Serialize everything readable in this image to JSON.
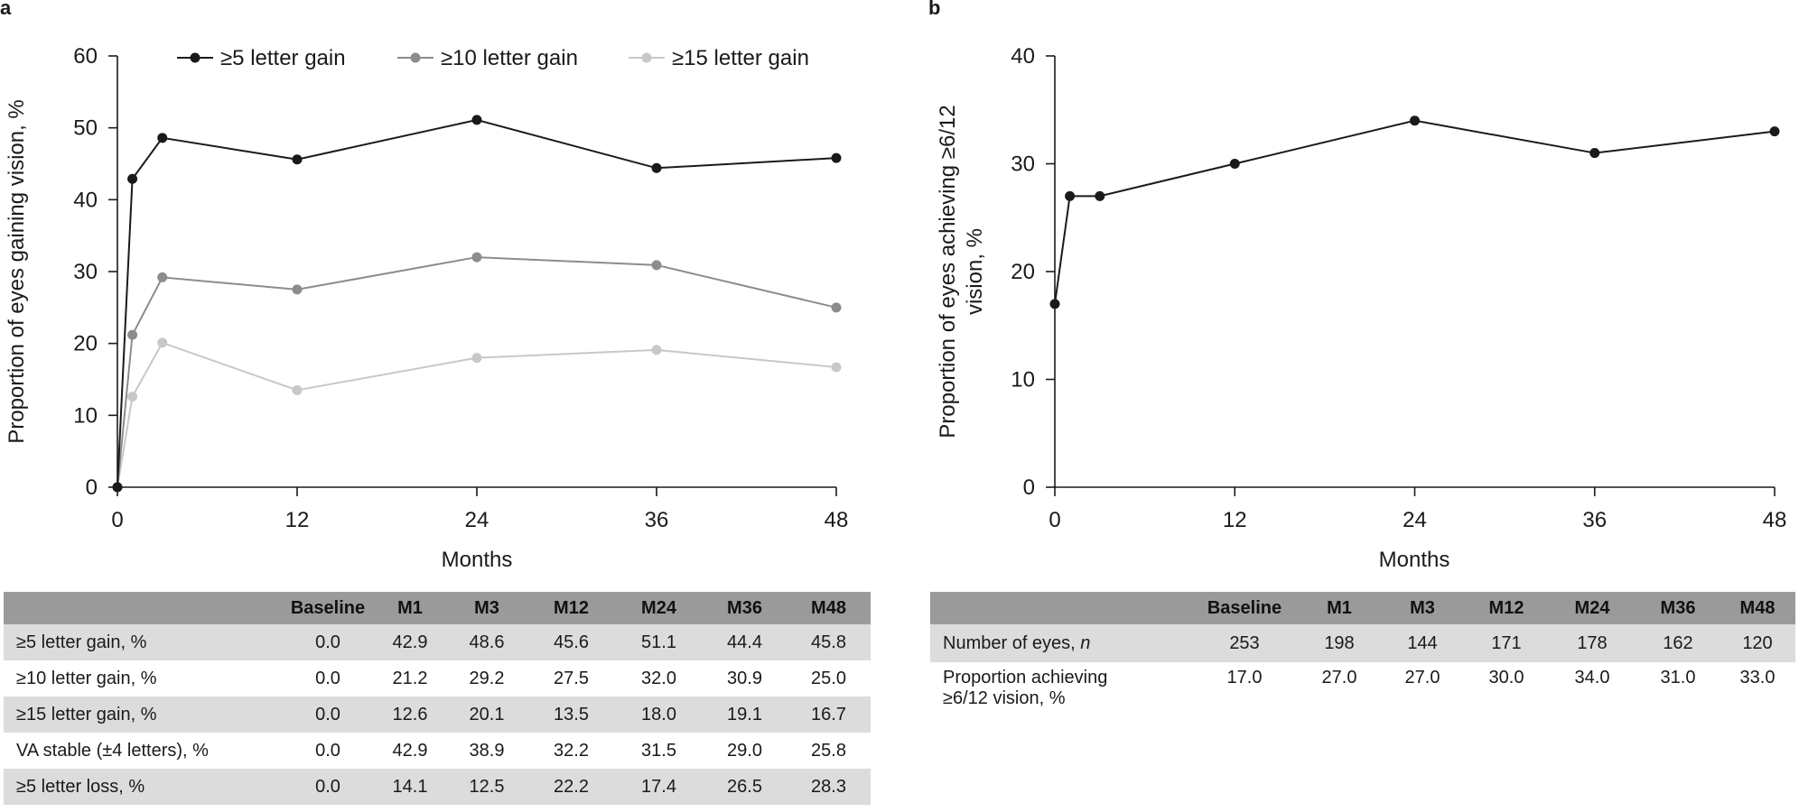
{
  "panel_a_letter": "a",
  "panel_b_letter": "b",
  "chart_data": [
    {
      "type": "line",
      "title": "",
      "xlabel": "Months",
      "ylabel": "Proportion of eyes gaining vision, %",
      "xlim": [
        0,
        48
      ],
      "ylim": [
        0,
        60
      ],
      "xticks": [
        "0",
        "12",
        "24",
        "36",
        "48"
      ],
      "yticks": [
        "0",
        "10",
        "20",
        "30",
        "40",
        "50",
        "60"
      ],
      "x": [
        0,
        1,
        3,
        12,
        24,
        36,
        48
      ],
      "legend_position": "top",
      "series": [
        {
          "name": "≥5 letter gain",
          "color": "#1a1a1a",
          "values": [
            0,
            42.9,
            48.6,
            45.6,
            51.1,
            44.4,
            45.8
          ]
        },
        {
          "name": "≥10 letter gain",
          "color": "#8c8c8c",
          "values": [
            0,
            21.2,
            29.2,
            27.5,
            32.0,
            30.9,
            25.0
          ]
        },
        {
          "name": "≥15 letter gain",
          "color": "#c8c8c8",
          "values": [
            0,
            12.6,
            20.1,
            13.5,
            18.0,
            19.1,
            16.7
          ]
        }
      ]
    },
    {
      "type": "line",
      "title": "",
      "xlabel": "Months",
      "ylabel": "Proportion of eyes achieving ≥6/12 vision, %",
      "ylabel_lines": [
        "Proportion of eyes achieving ≥6/12",
        "vision, %"
      ],
      "xlim": [
        0,
        48
      ],
      "ylim": [
        0,
        40
      ],
      "xticks": [
        "0",
        "12",
        "24",
        "36",
        "48"
      ],
      "yticks": [
        "0",
        "10",
        "20",
        "30",
        "40"
      ],
      "x": [
        0,
        1,
        3,
        12,
        24,
        36,
        48
      ],
      "series": [
        {
          "name": "Proportion achieving ≥6/12 vision, %",
          "color": "#1a1a1a",
          "values": [
            17.0,
            27.0,
            27.0,
            30.0,
            34.0,
            31.0,
            33.0
          ]
        }
      ]
    }
  ],
  "table_a": {
    "headers": [
      "",
      "Baseline",
      "M1",
      "M3",
      "M12",
      "M24",
      "M36",
      "M48"
    ],
    "rows": [
      {
        "label": "≥5 letter gain, %",
        "values": [
          "0.0",
          "42.9",
          "48.6",
          "45.6",
          "51.1",
          "44.4",
          "45.8"
        ]
      },
      {
        "label": "≥10 letter gain, %",
        "values": [
          "0.0",
          "21.2",
          "29.2",
          "27.5",
          "32.0",
          "30.9",
          "25.0"
        ]
      },
      {
        "label": "≥15 letter gain, %",
        "values": [
          "0.0",
          "12.6",
          "20.1",
          "13.5",
          "18.0",
          "19.1",
          "16.7"
        ]
      },
      {
        "label": "VA stable (±4 letters), %",
        "values": [
          "0.0",
          "42.9",
          "38.9",
          "32.2",
          "31.5",
          "29.0",
          "25.8"
        ]
      },
      {
        "label": "≥5 letter loss, %",
        "values": [
          "0.0",
          "14.1",
          "12.5",
          "22.2",
          "17.4",
          "26.5",
          "28.3"
        ]
      }
    ]
  },
  "table_b": {
    "headers": [
      "",
      "Baseline",
      "M1",
      "M3",
      "M12",
      "M24",
      "M36",
      "M48"
    ],
    "rows": [
      {
        "label": "Number of eyes, ",
        "label_em": "n",
        "values": [
          "253",
          "198",
          "144",
          "171",
          "178",
          "162",
          "120"
        ]
      },
      {
        "label_line1": "Proportion achieving",
        "label_line2": "≥6/12 vision, %",
        "values": [
          "17.0",
          "27.0",
          "27.0",
          "30.0",
          "34.0",
          "31.0",
          "33.0"
        ]
      }
    ]
  }
}
